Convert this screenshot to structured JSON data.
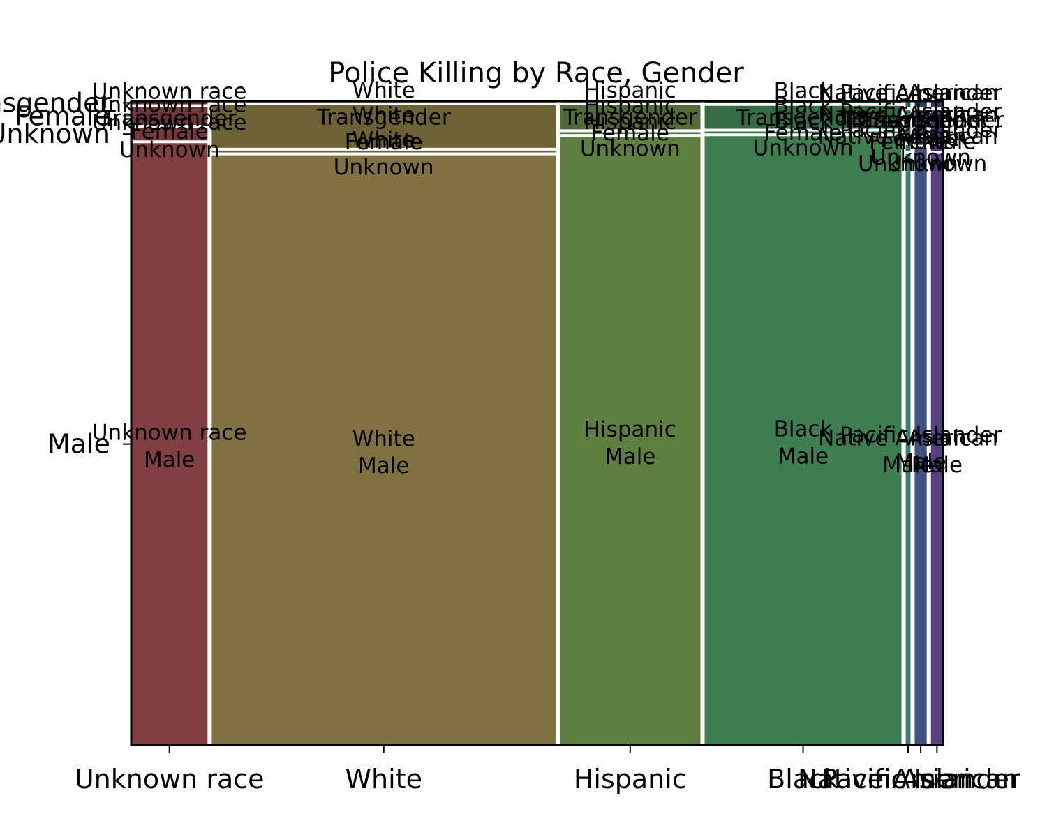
{
  "chart_data": {
    "type": "mosaic",
    "title": "Police Killing by Race, Gender",
    "xlabel": "",
    "ylabel": "",
    "x_categories": [
      "Unknown race",
      "White",
      "Hispanic",
      "Black",
      "Native American",
      "Pacific Islander",
      "Asian"
    ],
    "y_categories": [
      "Male",
      "Unknown",
      "Female",
      "Transgender"
    ],
    "x_tick_labels": [
      "Unknown race",
      "White",
      "Hispanic",
      "Black",
      "Native American",
      "Pacific Islander",
      "Asian"
    ],
    "y_tick_labels": [
      "Male",
      "Unknown",
      "Female",
      "Transgender"
    ],
    "columns": [
      {
        "race": "Unknown race",
        "share": 0.095,
        "color": "#823f41",
        "segments": [
          {
            "gender": "Male",
            "share": 0.947,
            "label": [
              "Unknown race",
              "Male"
            ]
          },
          {
            "gender": "Unknown",
            "share": 0.02,
            "label": [
              "Unknown race",
              "Unknown"
            ]
          },
          {
            "gender": "Female",
            "share": 0.028,
            "label": [
              "Unknown race",
              "Female"
            ]
          },
          {
            "gender": "Transgender",
            "share": 0.005,
            "label": [
              "Unknown race",
              "Transgender"
            ]
          }
        ]
      },
      {
        "race": "White",
        "share": 0.428,
        "color": "#807240",
        "segments": [
          {
            "gender": "Male",
            "share": 0.928,
            "label": [
              "White",
              "Male"
            ]
          },
          {
            "gender": "Unknown",
            "share": 0.003,
            "label": [
              "White",
              "Unknown"
            ]
          },
          {
            "gender": "Female",
            "share": 0.067,
            "label": [
              "White",
              "Female"
            ]
          },
          {
            "gender": "Transgender",
            "share": 0.002,
            "label": [
              "White",
              "Transgender"
            ]
          }
        ]
      },
      {
        "race": "Hispanic",
        "share": 0.175,
        "color": "#5f7f41",
        "segments": [
          {
            "gender": "Male",
            "share": 0.957,
            "label": [
              "Hispanic",
              "Male"
            ]
          },
          {
            "gender": "Unknown",
            "share": 0.003,
            "label": [
              "Hispanic",
              "Unknown"
            ]
          },
          {
            "gender": "Female",
            "share": 0.038,
            "label": [
              "Hispanic",
              "Female"
            ]
          },
          {
            "gender": "Transgender",
            "share": 0.002,
            "label": [
              "Hispanic",
              "Transgender"
            ]
          }
        ]
      },
      {
        "race": "Black",
        "share": 0.245,
        "color": "#3e7f51",
        "segments": [
          {
            "gender": "Male",
            "share": 0.958,
            "label": [
              "Black",
              "Male"
            ]
          },
          {
            "gender": "Unknown",
            "share": 0.003,
            "label": [
              "Black",
              "Unknown"
            ]
          },
          {
            "gender": "Female",
            "share": 0.036,
            "label": [
              "Black",
              "Female"
            ]
          },
          {
            "gender": "Transgender",
            "share": 0.003,
            "label": [
              "Black",
              "Transgender"
            ]
          }
        ]
      },
      {
        "race": "Native American",
        "share": 0.006,
        "color": "#3e7f72",
        "segments": [
          {
            "gender": "Male",
            "share": 0.93,
            "label": [
              "Native American",
              "Male"
            ]
          },
          {
            "gender": "Unknown",
            "share": 0.01,
            "label": [
              "Native American",
              "Unknown"
            ]
          },
          {
            "gender": "Female",
            "share": 0.05,
            "label": [
              "Native American",
              "Female"
            ]
          },
          {
            "gender": "Transgender",
            "share": 0.01,
            "label": [
              "Native American",
              "Transgender"
            ]
          }
        ]
      },
      {
        "race": "Pacific Islander",
        "share": 0.015,
        "color": "#3f5283",
        "segments": [
          {
            "gender": "Male",
            "share": 0.94,
            "label": [
              "Pacific Islander",
              "Male"
            ]
          },
          {
            "gender": "Unknown",
            "share": 0.01,
            "label": [
              "Pacific Islander",
              "Unknown"
            ]
          },
          {
            "gender": "Female",
            "share": 0.04,
            "label": [
              "Pacific Islander",
              "Female"
            ]
          },
          {
            "gender": "Transgender",
            "share": 0.01,
            "label": [
              "Pacific Islander",
              "Transgender"
            ]
          }
        ]
      },
      {
        "race": "Asian",
        "share": 0.015,
        "color": "#573f80",
        "segments": [
          {
            "gender": "Male",
            "share": 0.93,
            "label": [
              "Asian",
              "Male"
            ]
          },
          {
            "gender": "Unknown",
            "share": 0.01,
            "label": [
              "Asian",
              "Unknown"
            ]
          },
          {
            "gender": "Female",
            "share": 0.05,
            "label": [
              "Asian",
              "Female"
            ]
          },
          {
            "gender": "Transgender",
            "share": 0.01,
            "label": [
              "Asian",
              "Transgender"
            ]
          }
        ]
      }
    ],
    "grid": false,
    "legend": "none"
  }
}
